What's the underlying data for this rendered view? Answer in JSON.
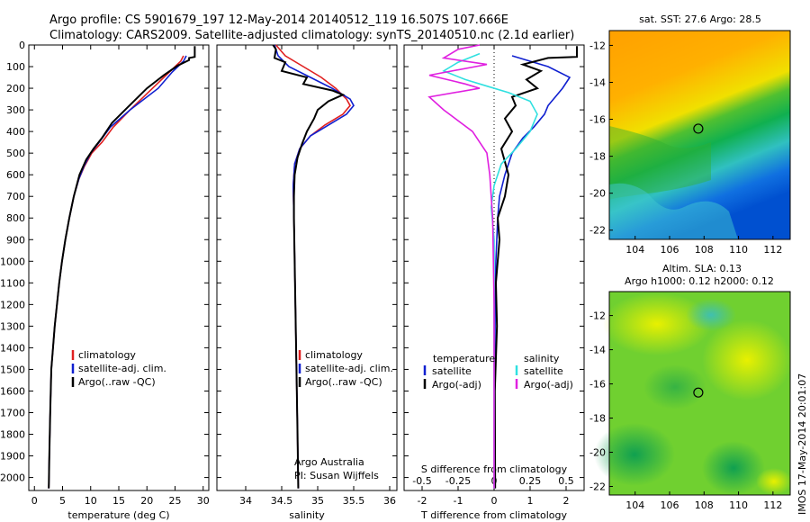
{
  "titles": {
    "line1": "Argo profile: CS 5901679_197 12-May-2014 20140512_119 16.507S 107.666E",
    "line2": "Climatology: CARS2009. Satellite-adjusted climatology: synTS_20140510.nc (2.1d earlier)"
  },
  "colors": {
    "climatology": "#e02020",
    "satellite": "#1020d0",
    "argo": "#000000",
    "satellite_diff": "#30e0e0",
    "argo_diff": "#e020e0"
  },
  "chart_data": [
    {
      "type": "line",
      "panel": "temperature",
      "xlabel": "temperature (deg C)",
      "xlim": [
        -1,
        31
      ],
      "ylim": [
        2060,
        0
      ],
      "xticks": [
        0,
        5,
        10,
        15,
        20,
        25,
        30
      ],
      "xtick_labels": [
        "0",
        "5",
        "10",
        "15",
        "20",
        "25",
        "30"
      ],
      "yticks": [
        0,
        100,
        200,
        300,
        400,
        500,
        600,
        700,
        800,
        900,
        1000,
        1100,
        1200,
        1300,
        1400,
        1500,
        1600,
        1700,
        1800,
        1900,
        2000
      ],
      "ytick_labels": [
        "0",
        "100",
        "200",
        "300",
        "400",
        "500",
        "600",
        "700",
        "800",
        "900",
        "1000",
        "1100",
        "1200",
        "1300",
        "1400",
        "1500",
        "1600",
        "1700",
        "1800",
        "1900",
        "2000"
      ],
      "legend": [
        "climatology",
        "satellite-adj. clim.",
        "Argo(..raw -QC)"
      ],
      "series": [
        {
          "name": "climatology",
          "color_key": "climatology",
          "x": [
            26.5,
            26.0,
            24.0,
            21.0,
            17.0,
            14.0,
            12.0,
            10.2,
            8.9,
            7.9,
            7.0,
            6.2,
            5.5,
            4.9,
            4.4,
            4.0,
            3.6,
            3.3,
            3.0,
            2.8,
            2.65,
            2.55
          ],
          "y": [
            50,
            75,
            125,
            200,
            300,
            380,
            450,
            500,
            560,
            620,
            700,
            800,
            900,
            1000,
            1100,
            1200,
            1300,
            1400,
            1500,
            1700,
            1900,
            2050
          ]
        },
        {
          "name": "satellite-adj. clim.",
          "color_key": "satellite",
          "x": [
            27.0,
            26.5,
            24.5,
            22.0,
            17.0,
            13.5,
            11.5,
            10.0,
            8.8,
            7.9,
            7.0,
            6.2,
            5.5,
            4.9,
            4.4,
            4.0,
            3.6,
            3.3,
            3.0,
            2.8,
            2.65,
            2.55
          ],
          "y": [
            50,
            75,
            125,
            200,
            300,
            380,
            450,
            500,
            560,
            620,
            700,
            800,
            900,
            1000,
            1100,
            1200,
            1300,
            1400,
            1500,
            1700,
            1900,
            2050
          ]
        },
        {
          "name": "Argo(..raw -QC)",
          "color_key": "argo",
          "x": [
            28.5,
            28.5,
            27.5,
            27.5,
            25.5,
            23.0,
            20.0,
            16.5,
            13.8,
            12.0,
            10.5,
            9.2,
            8.0,
            7.0,
            6.2,
            5.5,
            4.9,
            4.4,
            4.0,
            3.6,
            3.3,
            3.0,
            2.8,
            2.65,
            2.55
          ],
          "y": [
            5,
            55,
            60,
            70,
            95,
            140,
            200,
            290,
            360,
            430,
            480,
            530,
            600,
            700,
            800,
            900,
            1000,
            1100,
            1200,
            1300,
            1400,
            1500,
            1700,
            1900,
            2050
          ]
        }
      ]
    },
    {
      "type": "line",
      "panel": "salinity",
      "xlabel": "salinity",
      "xlim": [
        33.6,
        36.1
      ],
      "ylim": [
        2060,
        0
      ],
      "xticks": [
        34,
        34.5,
        35,
        35.5,
        36
      ],
      "xtick_labels": [
        "34",
        "34.5",
        "35",
        "35.5",
        "36"
      ],
      "legend": [
        "climatology",
        "satellite-adj. clim.",
        "Argo(..raw -QC)"
      ],
      "annotation": [
        "Argo Australia",
        "PI: Susan Wijffels"
      ],
      "series": [
        {
          "name": "climatology",
          "color_key": "climatology",
          "x": [
            34.42,
            34.55,
            34.8,
            35.05,
            35.25,
            35.4,
            35.45,
            35.35,
            35.1,
            34.9,
            34.75,
            34.68,
            34.66,
            34.67,
            34.68,
            34.69,
            34.7,
            34.71,
            34.72,
            34.73
          ],
          "y": [
            0,
            50,
            100,
            150,
            200,
            250,
            280,
            320,
            370,
            420,
            480,
            550,
            650,
            800,
            1000,
            1200,
            1400,
            1600,
            1800,
            2050
          ]
        },
        {
          "name": "satellite-adj. clim.",
          "color_key": "satellite",
          "x": [
            34.4,
            34.45,
            34.6,
            34.9,
            35.2,
            35.45,
            35.5,
            35.4,
            35.15,
            34.9,
            34.75,
            34.68,
            34.66,
            34.67,
            34.68,
            34.69,
            34.7,
            34.71,
            34.72,
            34.73
          ],
          "y": [
            0,
            50,
            100,
            150,
            200,
            250,
            280,
            320,
            370,
            420,
            480,
            550,
            650,
            800,
            1000,
            1200,
            1400,
            1600,
            1800,
            2050
          ]
        },
        {
          "name": "Argo(..raw -QC)",
          "color_key": "argo",
          "x": [
            34.38,
            34.42,
            34.4,
            34.55,
            34.5,
            34.85,
            34.8,
            35.2,
            35.35,
            35.15,
            35.0,
            34.95,
            34.85,
            34.78,
            34.72,
            34.68,
            34.67,
            34.67,
            34.68,
            34.69,
            34.7,
            34.71,
            34.72,
            34.73
          ],
          "y": [
            0,
            20,
            60,
            80,
            120,
            150,
            180,
            210,
            230,
            260,
            300,
            340,
            400,
            460,
            520,
            600,
            700,
            800,
            1000,
            1200,
            1400,
            1600,
            1800,
            2050
          ]
        }
      ]
    },
    {
      "type": "line",
      "panel": "difference",
      "xlabel": "T difference from climatology",
      "xlabel_top": "S difference from climatology",
      "xlim": [
        -2.5,
        2.5
      ],
      "ylim": [
        2060,
        0
      ],
      "xticks": [
        -2,
        -1,
        0,
        1,
        2
      ],
      "xtick_labels": [
        "-2",
        "-1",
        "0",
        "1",
        "2"
      ],
      "sticks": [
        -0.5,
        -0.25,
        0,
        0.25,
        0.5
      ],
      "stick_labels": [
        "-0.5",
        "-0.25",
        "0",
        "0.25",
        "0.5"
      ],
      "legend_temperature": {
        "title": "temperature",
        "items": [
          "satellite",
          "Argo(-adj)"
        ]
      },
      "legend_salinity": {
        "title": "salinity",
        "items": [
          "satellite",
          "Argo(-adj)"
        ]
      },
      "series": [
        {
          "name": "temperature satellite",
          "color_key": "satellite",
          "x": [
            0.5,
            1.0,
            1.5,
            2.1,
            1.9,
            1.7,
            1.5,
            1.4,
            1.1,
            0.8,
            0.5,
            0.3,
            0.15,
            0.1,
            0.05,
            0.03,
            0.02,
            0.02,
            0.02
          ],
          "y": [
            50,
            75,
            100,
            150,
            200,
            240,
            280,
            320,
            380,
            430,
            500,
            600,
            700,
            800,
            1000,
            1200,
            1500,
            1800,
            2050
          ]
        },
        {
          "name": "temperature Argo(-adj)",
          "color_key": "argo",
          "x": [
            2.3,
            2.3,
            1.5,
            0.8,
            1.3,
            0.9,
            1.2,
            0.5,
            0.6,
            0.3,
            0.5,
            0.2,
            0.4,
            0.3,
            0.1,
            0.15,
            0.05,
            0.08,
            0.02,
            0.03
          ],
          "y": [
            5,
            55,
            60,
            90,
            120,
            160,
            200,
            240,
            280,
            340,
            400,
            480,
            600,
            700,
            800,
            900,
            1100,
            1300,
            1600,
            2050
          ]
        },
        {
          "name": "salinity satellite",
          "color_key": "satellite_diff",
          "x": [
            -0.1,
            -0.25,
            -0.35,
            -0.2,
            -0.05,
            0.1,
            0.25,
            0.3,
            0.25,
            0.15,
            0.05,
            0.0,
            -0.02,
            0.0,
            0.0,
            0.0
          ],
          "y": [
            40,
            80,
            120,
            160,
            190,
            220,
            260,
            320,
            400,
            480,
            550,
            650,
            750,
            900,
            1300,
            2050
          ]
        },
        {
          "name": "salinity Argo(-adj)",
          "color_key": "argo_diff",
          "x": [
            -0.1,
            -0.25,
            -0.35,
            -0.05,
            -0.45,
            -0.2,
            -0.1,
            -0.45,
            -0.35,
            -0.15,
            -0.05,
            -0.03,
            -0.01,
            0.0,
            0.0
          ],
          "y": [
            0,
            20,
            60,
            90,
            140,
            180,
            200,
            240,
            300,
            400,
            500,
            600,
            800,
            1200,
            2050
          ]
        }
      ]
    },
    {
      "type": "heatmap",
      "panel": "sst_map",
      "title": "sat. SST: 27.6  Argo: 28.5",
      "xlim": [
        102.5,
        113.0
      ],
      "ylim": [
        -22.5,
        -11.2
      ],
      "xticks": [
        104,
        106,
        108,
        110,
        112
      ],
      "xtick_labels": [
        "104",
        "106",
        "108",
        "110",
        "112"
      ],
      "yticks": [
        -12,
        -14,
        -16,
        -18,
        -20,
        -22
      ],
      "ytick_labels": [
        "-12",
        "-14",
        "-16",
        "-18",
        "-20",
        "-22"
      ],
      "marker": {
        "lon": 107.666,
        "lat": -16.507
      }
    },
    {
      "type": "heatmap",
      "panel": "sla_map",
      "title_line1": "Altim. SLA: 0.13",
      "title_line2": "Argo h1000: 0.12  h2000: 0.12",
      "xlim": [
        102.5,
        113.0
      ],
      "ylim": [
        -22.5,
        -10.6
      ],
      "xticks": [
        104,
        106,
        108,
        110,
        112
      ],
      "xtick_labels": [
        "104",
        "106",
        "108",
        "110",
        "112"
      ],
      "yticks": [
        -12,
        -14,
        -16,
        -18,
        -20,
        -22
      ],
      "ytick_labels": [
        "-12",
        "-14",
        "-16",
        "-18",
        "-20",
        "-22"
      ],
      "marker": {
        "lon": 107.666,
        "lat": -16.507
      }
    }
  ],
  "watermark": "IMOS 17-May-2014 20:01:07"
}
